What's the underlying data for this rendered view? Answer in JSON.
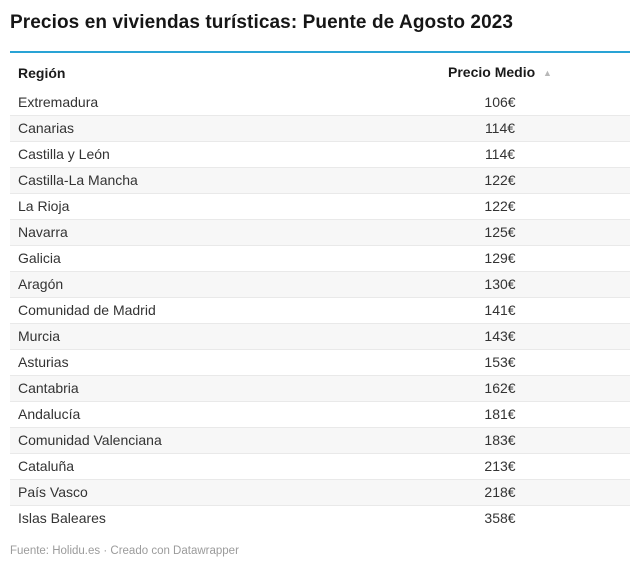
{
  "title": "Precios en viviendas turísticas: Puente de Agosto 2023",
  "table": {
    "columns": [
      {
        "label": "Región"
      },
      {
        "label": "Precio Medio",
        "sort_icon": "▲",
        "sort_state": "ascending"
      }
    ],
    "rows": [
      {
        "region": "Extremadura",
        "price": "106€"
      },
      {
        "region": "Canarias",
        "price": "114€"
      },
      {
        "region": "Castilla y León",
        "price": "114€"
      },
      {
        "region": "Castilla-La Mancha",
        "price": "122€"
      },
      {
        "region": "La Rioja",
        "price": "122€"
      },
      {
        "region": "Navarra",
        "price": "125€"
      },
      {
        "region": "Galicia",
        "price": "129€"
      },
      {
        "region": "Aragón",
        "price": "130€"
      },
      {
        "region": "Comunidad de Madrid",
        "price": "141€"
      },
      {
        "region": "Murcia",
        "price": "143€"
      },
      {
        "region": "Asturias",
        "price": "153€"
      },
      {
        "region": "Cantabria",
        "price": "162€"
      },
      {
        "region": "Andalucía",
        "price": "181€"
      },
      {
        "region": "Comunidad Valenciana",
        "price": "183€"
      },
      {
        "region": "Cataluña",
        "price": "213€"
      },
      {
        "region": "País Vasco",
        "price": "218€"
      },
      {
        "region": "Islas Baleares",
        "price": "358€"
      }
    ]
  },
  "footer": {
    "source_label": "Fuente:",
    "source": "Holidu.es",
    "separator": "·",
    "attribution": "Creado con Datawrapper"
  },
  "colors": {
    "accent": "#29a3d5",
    "stripe": "#f7f7f7",
    "border": "#e9e9e9",
    "title-color": "#161616",
    "text-color": "#333333",
    "header-color": "#1a1a1a",
    "sort-color": "#b8b8b8",
    "footer-color": "#9b9b9b"
  },
  "chart_data": {
    "type": "table",
    "title": "Precios en viviendas turísticas: Puente de Agosto 2023",
    "columns": [
      "Región",
      "Precio Medio"
    ],
    "categories": [
      "Extremadura",
      "Canarias",
      "Castilla y León",
      "Castilla-La Mancha",
      "La Rioja",
      "Navarra",
      "Galicia",
      "Aragón",
      "Comunidad de Madrid",
      "Murcia",
      "Asturias",
      "Cantabria",
      "Andalucía",
      "Comunidad Valenciana",
      "Cataluña",
      "País Vasco",
      "Islas Baleares"
    ],
    "values": [
      106,
      114,
      114,
      122,
      122,
      125,
      129,
      130,
      141,
      143,
      153,
      162,
      181,
      183,
      213,
      218,
      358
    ],
    "unit": "€",
    "sort": "ascending by Precio Medio",
    "source": "Holidu.es",
    "attribution": "Creado con Datawrapper"
  }
}
